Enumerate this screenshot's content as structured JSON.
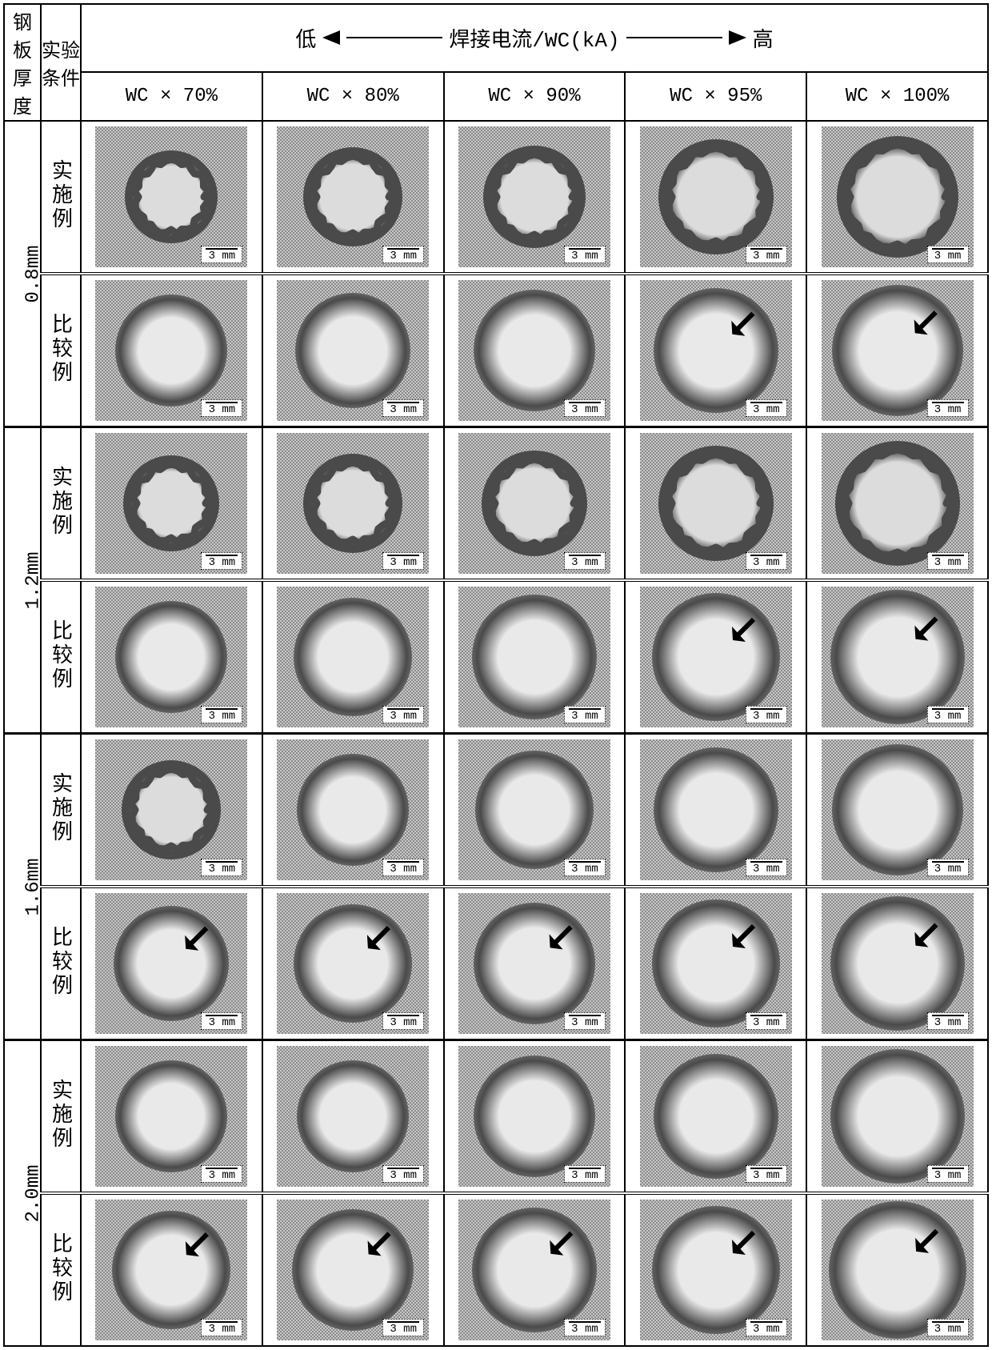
{
  "header": {
    "thickness_label": "钢板\n厚度",
    "condition_label": "实验\n条件",
    "low": "低",
    "high": "高",
    "axis_label": "焊接电流/WC(kA)",
    "cols": [
      "WC × 70%",
      "WC × 80%",
      "WC × 90%",
      "WC × 95%",
      "WC × 100%"
    ]
  },
  "conditions": [
    "实施例",
    "比较例"
  ],
  "scale_label": "3 mm",
  "style": {
    "background": "#ffffff",
    "border": "#000000",
    "noise_light": "#c9c9c9",
    "noise_dark": "#8a8a8a",
    "ring_dark": "#4a4a4a",
    "center_fill": "#dcdcdc",
    "blur_center": "#e9e9e9",
    "arrow_color": "#000000",
    "scalebox_bg": "#ffffff",
    "font_label_pt": 24
  },
  "thicknesses": [
    {
      "label": "0.8mm",
      "rows": [
        {
          "cond_idx": 0,
          "cells": [
            {
              "type": "sharp",
              "radius": 44,
              "arrow": false
            },
            {
              "type": "sharp",
              "radius": 48,
              "arrow": false
            },
            {
              "type": "sharp",
              "radius": 50,
              "arrow": false
            },
            {
              "type": "sharp",
              "radius": 58,
              "arrow": false
            },
            {
              "type": "sharp",
              "radius": 62,
              "arrow": false
            }
          ]
        },
        {
          "cond_idx": 1,
          "cells": [
            {
              "type": "blur",
              "radius": 50,
              "arrow": false
            },
            {
              "type": "blur",
              "radius": 52,
              "arrow": false
            },
            {
              "type": "blur",
              "radius": 56,
              "arrow": false
            },
            {
              "type": "blur",
              "radius": 58,
              "arrow": true
            },
            {
              "type": "blur",
              "radius": 62,
              "arrow": true
            }
          ]
        }
      ]
    },
    {
      "label": "1.2mm",
      "rows": [
        {
          "cond_idx": 0,
          "cells": [
            {
              "type": "sharp",
              "radius": 46,
              "arrow": false
            },
            {
              "type": "sharp",
              "radius": 48,
              "arrow": false
            },
            {
              "type": "sharp",
              "radius": 52,
              "arrow": false
            },
            {
              "type": "sharp",
              "radius": 58,
              "arrow": false
            },
            {
              "type": "sharp",
              "radius": 64,
              "arrow": false
            }
          ]
        },
        {
          "cond_idx": 1,
          "cells": [
            {
              "type": "blur",
              "radius": 50,
              "arrow": false
            },
            {
              "type": "blur",
              "radius": 54,
              "arrow": false
            },
            {
              "type": "blur",
              "radius": 58,
              "arrow": false
            },
            {
              "type": "blur",
              "radius": 60,
              "arrow": true
            },
            {
              "type": "blur",
              "radius": 64,
              "arrow": true
            }
          ]
        }
      ]
    },
    {
      "label": "1.6mm",
      "rows": [
        {
          "cond_idx": 0,
          "cells": [
            {
              "type": "sharp",
              "radius": 48,
              "arrow": false
            },
            {
              "type": "blur",
              "radius": 50,
              "arrow": false
            },
            {
              "type": "blur",
              "radius": 54,
              "arrow": false
            },
            {
              "type": "blur",
              "radius": 58,
              "arrow": false
            },
            {
              "type": "blur",
              "radius": 62,
              "arrow": false
            }
          ]
        },
        {
          "cond_idx": 1,
          "cells": [
            {
              "type": "blur",
              "radius": 52,
              "arrow": true
            },
            {
              "type": "blur",
              "radius": 54,
              "arrow": true
            },
            {
              "type": "blur",
              "radius": 56,
              "arrow": true
            },
            {
              "type": "blur",
              "radius": 60,
              "arrow": true
            },
            {
              "type": "blur",
              "radius": 64,
              "arrow": true
            }
          ]
        }
      ]
    },
    {
      "label": "2.0mm",
      "rows": [
        {
          "cond_idx": 0,
          "cells": [
            {
              "type": "blur",
              "radius": 50,
              "arrow": false
            },
            {
              "type": "blur",
              "radius": 50,
              "arrow": false
            },
            {
              "type": "blur",
              "radius": 56,
              "arrow": false
            },
            {
              "type": "blur",
              "radius": 58,
              "arrow": false
            },
            {
              "type": "blur",
              "radius": 64,
              "arrow": false
            }
          ]
        },
        {
          "cond_idx": 1,
          "cells": [
            {
              "type": "blur",
              "radius": 54,
              "arrow": true
            },
            {
              "type": "blur",
              "radius": 56,
              "arrow": true
            },
            {
              "type": "blur",
              "radius": 58,
              "arrow": true
            },
            {
              "type": "blur",
              "radius": 60,
              "arrow": true
            },
            {
              "type": "blur",
              "radius": 66,
              "arrow": true
            }
          ]
        }
      ]
    }
  ]
}
